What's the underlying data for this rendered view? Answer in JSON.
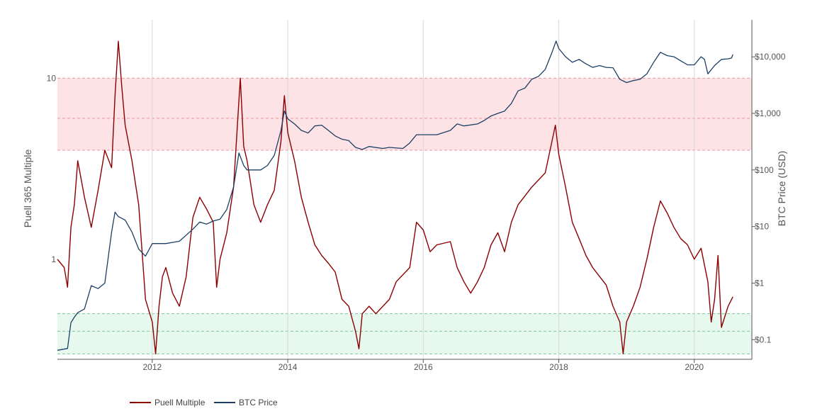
{
  "chart_data": {
    "type": "line",
    "title": "",
    "x_tick_labels": [
      "2012",
      "2014",
      "2016",
      "2018",
      "2020"
    ],
    "x_tick_years": [
      2012,
      2014,
      2016,
      2018,
      2020
    ],
    "x_range": [
      2010.6,
      2020.85
    ],
    "left_axis": {
      "label": "Puell 365 Multiple",
      "scale": "log",
      "range": [
        0.28,
        21
      ],
      "ticks": [
        {
          "value": 10,
          "label": "10"
        },
        {
          "value": 1,
          "label": "1"
        }
      ]
    },
    "right_axis": {
      "label": "BTC Price (USD)",
      "scale": "log",
      "range": [
        0.045,
        45000
      ],
      "ticks": [
        {
          "value": 10000,
          "label": "$10,000"
        },
        {
          "value": 1000,
          "label": "$1,000"
        },
        {
          "value": 100,
          "label": "$100"
        },
        {
          "value": 10,
          "label": "$10"
        },
        {
          "value": 1,
          "label": "$1"
        },
        {
          "value": 0.1,
          "label": "$0.1"
        }
      ]
    },
    "bands": [
      {
        "name": "overvalued-band",
        "from": 4,
        "to": 10,
        "dashed_lines": [
          10,
          6,
          4
        ],
        "color": "#fde3e5",
        "line_color": "#e79aa1"
      },
      {
        "name": "undervalued-band",
        "from": 0.3,
        "to": 0.5,
        "dashed_lines": [
          0.5,
          0.4,
          0.3
        ],
        "color": "#e7f8ee",
        "line_color": "#7fc795"
      }
    ],
    "series": [
      {
        "name": "Puell Multiple",
        "axis": "left",
        "color": "#8b0000",
        "points": [
          [
            2010.6,
            1.0
          ],
          [
            2010.7,
            0.9
          ],
          [
            2010.75,
            0.7
          ],
          [
            2010.8,
            1.5
          ],
          [
            2010.85,
            2.0
          ],
          [
            2010.9,
            3.5
          ],
          [
            2011.0,
            2.2
          ],
          [
            2011.1,
            1.5
          ],
          [
            2011.2,
            2.4
          ],
          [
            2011.3,
            4.0
          ],
          [
            2011.4,
            3.2
          ],
          [
            2011.45,
            8.0
          ],
          [
            2011.5,
            16.0
          ],
          [
            2011.55,
            9.0
          ],
          [
            2011.6,
            5.5
          ],
          [
            2011.7,
            3.5
          ],
          [
            2011.8,
            2.0
          ],
          [
            2011.85,
            1.1
          ],
          [
            2011.9,
            0.6
          ],
          [
            2012.0,
            0.45
          ],
          [
            2012.05,
            0.3
          ],
          [
            2012.1,
            0.55
          ],
          [
            2012.15,
            0.8
          ],
          [
            2012.2,
            0.9
          ],
          [
            2012.3,
            0.65
          ],
          [
            2012.4,
            0.55
          ],
          [
            2012.5,
            0.8
          ],
          [
            2012.6,
            1.7
          ],
          [
            2012.7,
            2.2
          ],
          [
            2012.8,
            1.9
          ],
          [
            2012.9,
            1.6
          ],
          [
            2012.95,
            0.7
          ],
          [
            2013.0,
            1.0
          ],
          [
            2013.1,
            1.4
          ],
          [
            2013.2,
            2.5
          ],
          [
            2013.3,
            10.0
          ],
          [
            2013.35,
            4.2
          ],
          [
            2013.4,
            3.5
          ],
          [
            2013.5,
            2.0
          ],
          [
            2013.6,
            1.6
          ],
          [
            2013.7,
            2.0
          ],
          [
            2013.8,
            2.4
          ],
          [
            2013.9,
            4.5
          ],
          [
            2013.95,
            8.0
          ],
          [
            2014.0,
            5.0
          ],
          [
            2014.1,
            3.5
          ],
          [
            2014.2,
            2.2
          ],
          [
            2014.3,
            1.6
          ],
          [
            2014.4,
            1.2
          ],
          [
            2014.5,
            1.05
          ],
          [
            2014.6,
            0.95
          ],
          [
            2014.7,
            0.85
          ],
          [
            2014.8,
            0.6
          ],
          [
            2014.9,
            0.55
          ],
          [
            2015.0,
            0.4
          ],
          [
            2015.05,
            0.32
          ],
          [
            2015.1,
            0.5
          ],
          [
            2015.2,
            0.55
          ],
          [
            2015.3,
            0.5
          ],
          [
            2015.5,
            0.6
          ],
          [
            2015.6,
            0.75
          ],
          [
            2015.8,
            0.9
          ],
          [
            2015.9,
            1.6
          ],
          [
            2016.0,
            1.45
          ],
          [
            2016.1,
            1.1
          ],
          [
            2016.2,
            1.2
          ],
          [
            2016.4,
            1.25
          ],
          [
            2016.5,
            0.9
          ],
          [
            2016.6,
            0.75
          ],
          [
            2016.7,
            0.65
          ],
          [
            2016.8,
            0.75
          ],
          [
            2016.9,
            0.9
          ],
          [
            2017.0,
            1.2
          ],
          [
            2017.1,
            1.4
          ],
          [
            2017.2,
            1.1
          ],
          [
            2017.3,
            1.6
          ],
          [
            2017.4,
            2.0
          ],
          [
            2017.6,
            2.5
          ],
          [
            2017.8,
            3.0
          ],
          [
            2017.9,
            4.5
          ],
          [
            2017.95,
            5.5
          ],
          [
            2018.0,
            3.8
          ],
          [
            2018.1,
            2.5
          ],
          [
            2018.2,
            1.6
          ],
          [
            2018.3,
            1.3
          ],
          [
            2018.4,
            1.05
          ],
          [
            2018.5,
            0.9
          ],
          [
            2018.7,
            0.72
          ],
          [
            2018.8,
            0.55
          ],
          [
            2018.9,
            0.45
          ],
          [
            2018.95,
            0.3
          ],
          [
            2019.0,
            0.45
          ],
          [
            2019.1,
            0.55
          ],
          [
            2019.2,
            0.7
          ],
          [
            2019.3,
            1.0
          ],
          [
            2019.4,
            1.5
          ],
          [
            2019.5,
            2.1
          ],
          [
            2019.6,
            1.8
          ],
          [
            2019.7,
            1.5
          ],
          [
            2019.8,
            1.3
          ],
          [
            2019.9,
            1.2
          ],
          [
            2020.0,
            1.0
          ],
          [
            2020.1,
            1.15
          ],
          [
            2020.2,
            0.75
          ],
          [
            2020.25,
            0.45
          ],
          [
            2020.3,
            0.6
          ],
          [
            2020.35,
            1.05
          ],
          [
            2020.4,
            0.42
          ],
          [
            2020.5,
            0.55
          ],
          [
            2020.57,
            0.62
          ]
        ]
      },
      {
        "name": "BTC Price",
        "axis": "right",
        "color": "#1c3f66",
        "points": [
          [
            2010.6,
            0.065
          ],
          [
            2010.75,
            0.07
          ],
          [
            2010.8,
            0.2
          ],
          [
            2010.85,
            0.25
          ],
          [
            2010.9,
            0.3
          ],
          [
            2011.0,
            0.35
          ],
          [
            2011.1,
            0.9
          ],
          [
            2011.2,
            0.8
          ],
          [
            2011.3,
            1.0
          ],
          [
            2011.4,
            8.0
          ],
          [
            2011.45,
            18.0
          ],
          [
            2011.5,
            15.0
          ],
          [
            2011.6,
            13.0
          ],
          [
            2011.7,
            8.0
          ],
          [
            2011.8,
            4.0
          ],
          [
            2011.9,
            3.0
          ],
          [
            2012.0,
            5.0
          ],
          [
            2012.2,
            5.0
          ],
          [
            2012.4,
            5.5
          ],
          [
            2012.6,
            9.0
          ],
          [
            2012.7,
            12.0
          ],
          [
            2012.8,
            11.0
          ],
          [
            2012.9,
            12.5
          ],
          [
            2013.0,
            13.5
          ],
          [
            2013.1,
            20.0
          ],
          [
            2013.2,
            50.0
          ],
          [
            2013.28,
            200.0
          ],
          [
            2013.35,
            120.0
          ],
          [
            2013.4,
            100.0
          ],
          [
            2013.5,
            100.0
          ],
          [
            2013.6,
            100.0
          ],
          [
            2013.7,
            120.0
          ],
          [
            2013.8,
            180.0
          ],
          [
            2013.9,
            500.0
          ],
          [
            2013.95,
            1100.0
          ],
          [
            2014.0,
            800.0
          ],
          [
            2014.1,
            650.0
          ],
          [
            2014.2,
            500.0
          ],
          [
            2014.3,
            450.0
          ],
          [
            2014.4,
            600.0
          ],
          [
            2014.5,
            620.0
          ],
          [
            2014.6,
            500.0
          ],
          [
            2014.7,
            400.0
          ],
          [
            2014.8,
            350.0
          ],
          [
            2014.9,
            330.0
          ],
          [
            2015.0,
            250.0
          ],
          [
            2015.1,
            230.0
          ],
          [
            2015.2,
            260.0
          ],
          [
            2015.4,
            240.0
          ],
          [
            2015.5,
            250.0
          ],
          [
            2015.7,
            240.0
          ],
          [
            2015.8,
            300.0
          ],
          [
            2015.9,
            420.0
          ],
          [
            2016.0,
            420.0
          ],
          [
            2016.2,
            420.0
          ],
          [
            2016.4,
            500.0
          ],
          [
            2016.5,
            650.0
          ],
          [
            2016.6,
            600.0
          ],
          [
            2016.8,
            650.0
          ],
          [
            2016.9,
            750.0
          ],
          [
            2017.0,
            900.0
          ],
          [
            2017.1,
            1000.0
          ],
          [
            2017.2,
            1100.0
          ],
          [
            2017.3,
            1500.0
          ],
          [
            2017.4,
            2500.0
          ],
          [
            2017.5,
            2800.0
          ],
          [
            2017.6,
            4000.0
          ],
          [
            2017.7,
            4500.0
          ],
          [
            2017.8,
            6000.0
          ],
          [
            2017.9,
            12000.0
          ],
          [
            2017.96,
            19000.0
          ],
          [
            2018.0,
            14000.0
          ],
          [
            2018.1,
            10000.0
          ],
          [
            2018.2,
            8000.0
          ],
          [
            2018.3,
            9000.0
          ],
          [
            2018.4,
            7500.0
          ],
          [
            2018.5,
            6500.0
          ],
          [
            2018.6,
            7000.0
          ],
          [
            2018.7,
            6500.0
          ],
          [
            2018.8,
            6400.0
          ],
          [
            2018.9,
            4000.0
          ],
          [
            2019.0,
            3500.0
          ],
          [
            2019.1,
            3800.0
          ],
          [
            2019.2,
            4000.0
          ],
          [
            2019.3,
            5000.0
          ],
          [
            2019.4,
            8000.0
          ],
          [
            2019.5,
            12000.0
          ],
          [
            2019.6,
            10500.0
          ],
          [
            2019.7,
            10000.0
          ],
          [
            2019.8,
            8500.0
          ],
          [
            2019.9,
            7200.0
          ],
          [
            2020.0,
            7200.0
          ],
          [
            2020.1,
            10000.0
          ],
          [
            2020.15,
            9000.0
          ],
          [
            2020.2,
            5000.0
          ],
          [
            2020.3,
            7000.0
          ],
          [
            2020.4,
            9000.0
          ],
          [
            2020.5,
            9200.0
          ],
          [
            2020.55,
            9500.0
          ],
          [
            2020.57,
            11000.0
          ]
        ]
      }
    ],
    "legend": {
      "position": "bottom-left",
      "items": [
        {
          "label": "Puell Multiple",
          "color": "#8b0000"
        },
        {
          "label": "BTC Price",
          "color": "#1c3f66"
        }
      ]
    }
  }
}
